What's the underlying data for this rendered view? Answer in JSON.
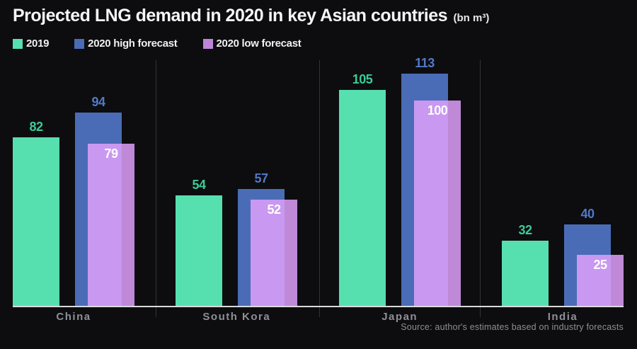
{
  "title": {
    "main": "Projected LNG demand in 2020 in key Asian countries",
    "unit": "(bn m³)"
  },
  "legend": [
    {
      "label": "2019",
      "color": "#57e0af"
    },
    {
      "label": "2020 high forecast",
      "color": "#4a6cb6"
    },
    {
      "label": "2020 low forecast",
      "color": "#bd85d8"
    }
  ],
  "source": "Source: author's estimates based on industry forecasts",
  "chart_data": {
    "type": "bar",
    "title": "Projected LNG demand in 2020 in key Asian countries (bn m³)",
    "categories": [
      "China",
      "South Kora",
      "Japan",
      "India"
    ],
    "series": [
      {
        "name": "2019",
        "color": "#57e0af",
        "label_color": "#3bcb96",
        "values": [
          82,
          54,
          105,
          32
        ]
      },
      {
        "name": "2020 high forecast",
        "color": "#4a6cb6",
        "label_color": "#5278c8",
        "values": [
          94,
          57,
          113,
          40
        ]
      },
      {
        "name": "2020 low forecast",
        "color": "rgba(223,160,250,0.85)",
        "label_color": "#ffffff",
        "values": [
          79,
          52,
          100,
          25
        ]
      }
    ],
    "xlabel": "",
    "ylabel": "",
    "ylim": [
      0,
      120
    ],
    "grid": false,
    "legend_position": "top-left",
    "background": "#0d0d0f",
    "baseline_color": "#d9d9dd",
    "divider_color": "#343439"
  }
}
